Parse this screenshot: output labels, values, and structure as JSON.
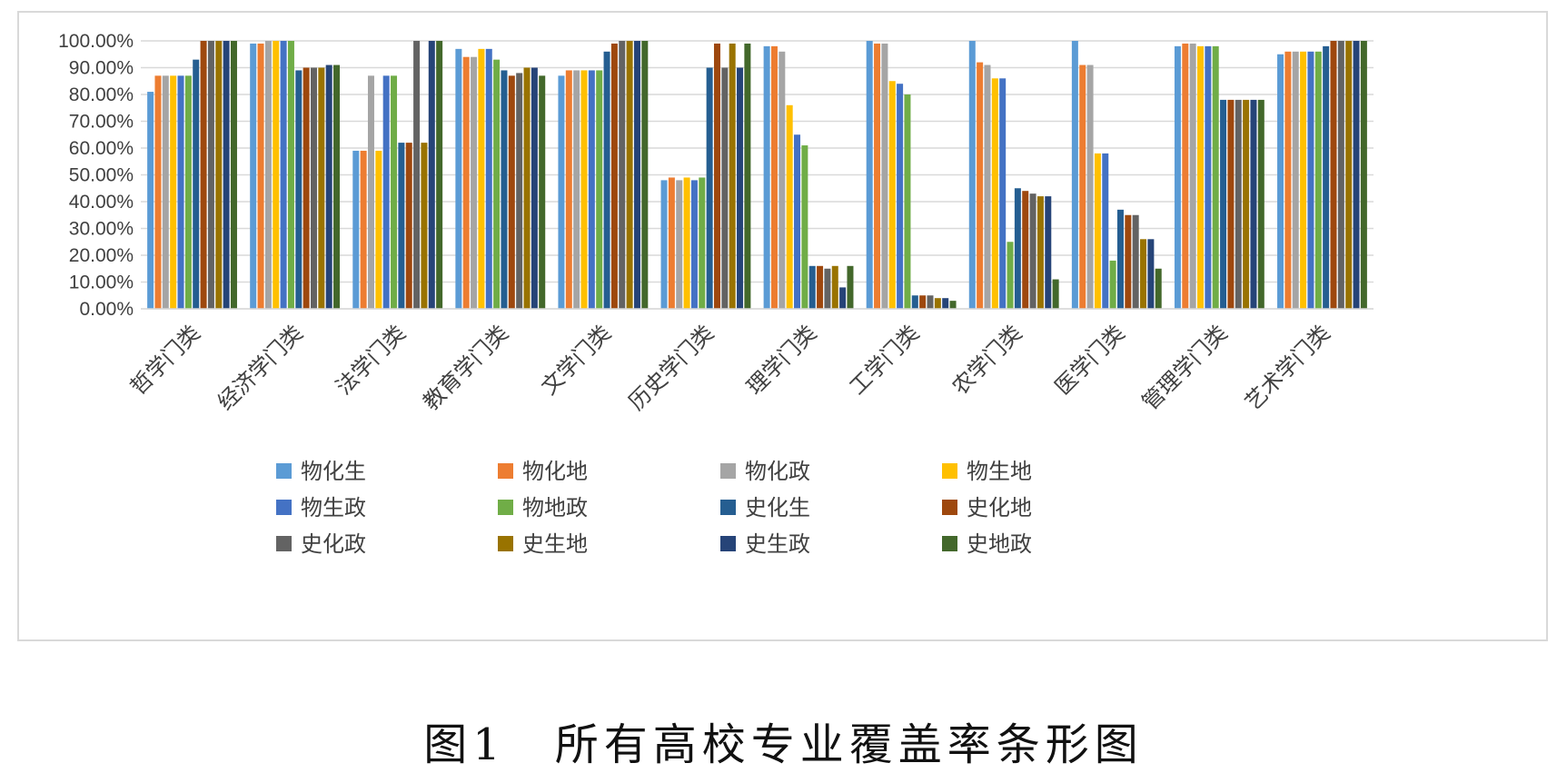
{
  "caption": "图1　所有高校专业覆盖率条形图",
  "chart_data": {
    "type": "bar",
    "title": "",
    "xlabel": "",
    "ylabel": "",
    "ylim": [
      0,
      1
    ],
    "y_ticks": [
      "0.00%",
      "10.00%",
      "20.00%",
      "30.00%",
      "40.00%",
      "50.00%",
      "60.00%",
      "70.00%",
      "80.00%",
      "90.00%",
      "100.00%"
    ],
    "grid": true,
    "legend_position": "bottom",
    "categories": [
      "哲学门类",
      "经济学门类",
      "法学门类",
      "教育学门类",
      "文学门类",
      "历史学门类",
      "理学门类",
      "工学门类",
      "农学门类",
      "医学门类",
      "管理学门类",
      "艺术学门类"
    ],
    "series": [
      {
        "name": "物化生",
        "color": "#5b9bd5",
        "values": [
          0.81,
          0.99,
          0.59,
          0.97,
          0.87,
          0.48,
          0.98,
          1.0,
          1.0,
          1.0,
          0.98,
          0.95
        ]
      },
      {
        "name": "物化地",
        "color": "#ed7d31",
        "values": [
          0.87,
          0.99,
          0.59,
          0.94,
          0.89,
          0.49,
          0.98,
          0.99,
          0.92,
          0.91,
          0.99,
          0.96
        ]
      },
      {
        "name": "物化政",
        "color": "#a5a5a5",
        "values": [
          0.87,
          1.0,
          0.87,
          0.94,
          0.89,
          0.48,
          0.96,
          0.99,
          0.91,
          0.91,
          0.99,
          0.96
        ]
      },
      {
        "name": "物生地",
        "color": "#ffc000",
        "values": [
          0.87,
          1.0,
          0.59,
          0.97,
          0.89,
          0.49,
          0.76,
          0.85,
          0.86,
          0.58,
          0.98,
          0.96
        ]
      },
      {
        "name": "物生政",
        "color": "#4472c4",
        "values": [
          0.87,
          1.0,
          0.87,
          0.97,
          0.89,
          0.48,
          0.65,
          0.84,
          0.86,
          0.58,
          0.98,
          0.96
        ]
      },
      {
        "name": "物地政",
        "color": "#70ad47",
        "values": [
          0.87,
          1.0,
          0.87,
          0.93,
          0.89,
          0.49,
          0.61,
          0.8,
          0.25,
          0.18,
          0.98,
          0.96
        ]
      },
      {
        "name": "史化生",
        "color": "#255e91",
        "values": [
          0.93,
          0.89,
          0.62,
          0.89,
          0.96,
          0.9,
          0.16,
          0.05,
          0.45,
          0.37,
          0.78,
          0.98
        ]
      },
      {
        "name": "史化地",
        "color": "#9e480e",
        "values": [
          1.0,
          0.9,
          0.62,
          0.87,
          0.99,
          0.99,
          0.16,
          0.05,
          0.44,
          0.35,
          0.78,
          1.0
        ]
      },
      {
        "name": "史化政",
        "color": "#636363",
        "values": [
          1.0,
          0.9,
          1.0,
          0.88,
          1.0,
          0.9,
          0.15,
          0.05,
          0.43,
          0.35,
          0.78,
          1.0
        ]
      },
      {
        "name": "史生地",
        "color": "#997300",
        "values": [
          1.0,
          0.9,
          0.62,
          0.9,
          1.0,
          0.99,
          0.16,
          0.04,
          0.42,
          0.26,
          0.78,
          1.0
        ]
      },
      {
        "name": "史生政",
        "color": "#264478",
        "values": [
          1.0,
          0.91,
          1.0,
          0.9,
          1.0,
          0.9,
          0.08,
          0.04,
          0.42,
          0.26,
          0.78,
          1.0
        ]
      },
      {
        "name": "史地政",
        "color": "#43682b",
        "values": [
          1.0,
          0.91,
          1.0,
          0.87,
          1.0,
          0.99,
          0.16,
          0.03,
          0.11,
          0.15,
          0.78,
          1.0
        ]
      }
    ]
  }
}
